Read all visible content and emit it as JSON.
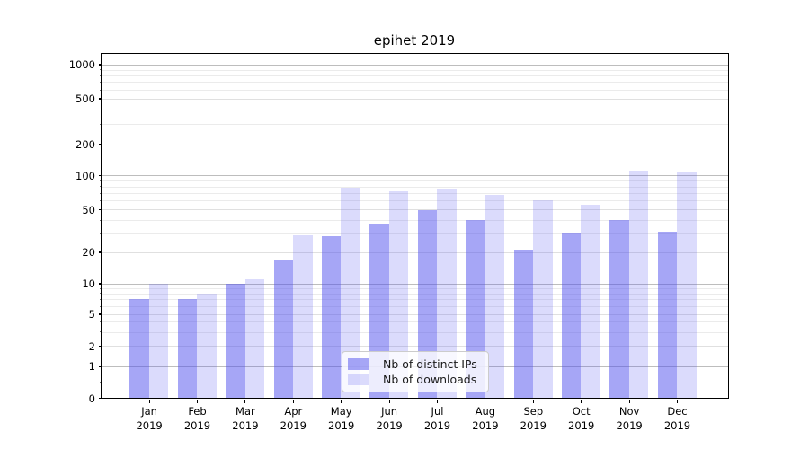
{
  "chart_data": {
    "type": "bar",
    "title": "epihet 2019",
    "categories": [
      "Jan",
      "Feb",
      "Mar",
      "Apr",
      "May",
      "Jun",
      "Jul",
      "Aug",
      "Sep",
      "Oct",
      "Nov",
      "Dec"
    ],
    "category_year": "2019",
    "series": [
      {
        "name": "Nb of distinct IPs",
        "color": "rgba(77,77,238,0.5)",
        "values": [
          7,
          7,
          10,
          17,
          28,
          37,
          50,
          40,
          21,
          30,
          40,
          31
        ]
      },
      {
        "name": "Nb of downloads",
        "color": "rgba(77,77,238,0.2)",
        "values": [
          10,
          8,
          11,
          29,
          78,
          72,
          76,
          67,
          61,
          55,
          112,
          110
        ]
      }
    ],
    "yscale": "symlog",
    "ylim": [
      0,
      1250
    ],
    "ytick_labels": [
      "0",
      "1",
      "2",
      "5",
      "10",
      "20",
      "50",
      "100",
      "200",
      "500",
      "1000"
    ],
    "ytick_values": [
      0,
      1,
      2,
      5,
      10,
      20,
      50,
      100,
      200,
      500,
      1000
    ],
    "grid": true,
    "gridlines": {
      "major": [
        1,
        10,
        100,
        1000
      ],
      "labeled_minor": [
        2,
        5,
        20,
        50,
        200,
        500
      ],
      "minor": [
        0.5,
        3,
        4,
        6,
        7,
        8,
        9,
        30,
        40,
        60,
        70,
        80,
        90,
        300,
        400,
        600,
        700,
        800,
        900
      ]
    },
    "legend_position": "lower center",
    "colors": {
      "bar_base": "#4d4dee",
      "ips_fill": "rgba(77,77,238,0.5)",
      "downloads_fill": "rgba(77,77,238,0.2)",
      "axis": "#000000"
    }
  }
}
